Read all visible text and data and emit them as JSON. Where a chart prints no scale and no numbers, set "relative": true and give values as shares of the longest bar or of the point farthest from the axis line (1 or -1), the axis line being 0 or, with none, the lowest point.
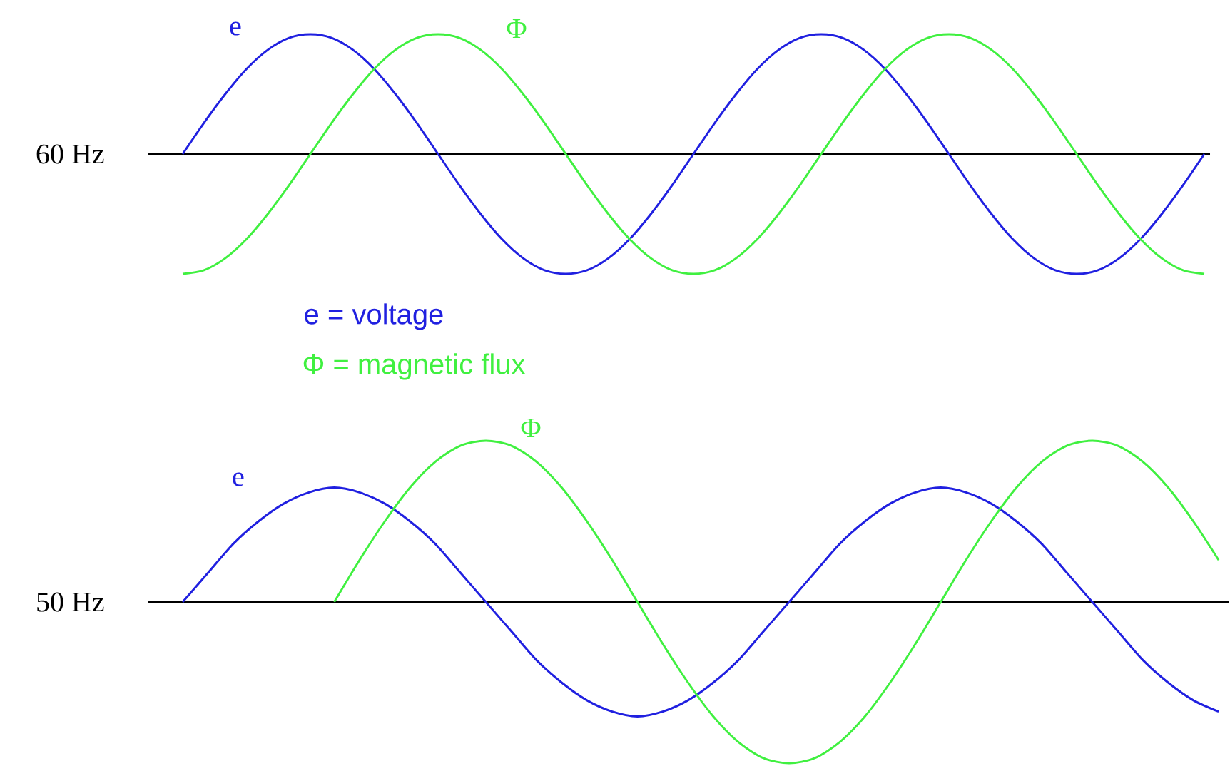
{
  "chart_data": [
    {
      "type": "line",
      "relative": true,
      "ylabel": "60 Hz",
      "categories": [
        null,
        null,
        null,
        null,
        null,
        null,
        null,
        null,
        null,
        null,
        null,
        null,
        null,
        null,
        null,
        null,
        null,
        null,
        null,
        null,
        null,
        null,
        null,
        null,
        null,
        null,
        null,
        null,
        null,
        null,
        null,
        null,
        null,
        null,
        null,
        null,
        null,
        null,
        null,
        null,
        null,
        null,
        null,
        null,
        null,
        null,
        null,
        null,
        null
      ],
      "series": [
        {
          "name": "e",
          "color": "#2020e0",
          "values": [
            0,
            0.26,
            0.5,
            0.71,
            0.87,
            0.97,
            1,
            0.97,
            0.87,
            0.71,
            0.5,
            0.26,
            0,
            -0.26,
            -0.5,
            -0.71,
            -0.87,
            -0.97,
            -1,
            -0.97,
            -0.87,
            -0.71,
            -0.5,
            -0.26,
            0,
            0.26,
            0.5,
            0.71,
            0.87,
            0.97,
            1,
            0.97,
            0.87,
            0.71,
            0.5,
            0.26,
            0,
            -0.26,
            -0.5,
            -0.71,
            -0.87,
            -0.97,
            -1,
            -0.97,
            -0.87,
            -0.71,
            -0.5,
            -0.26,
            0
          ]
        },
        {
          "name": "Φ",
          "color": "#40f040",
          "values": [
            -1,
            -0.97,
            -0.87,
            -0.71,
            -0.5,
            -0.26,
            0,
            0.26,
            0.5,
            0.71,
            0.87,
            0.97,
            1,
            0.97,
            0.87,
            0.71,
            0.5,
            0.26,
            0,
            -0.26,
            -0.5,
            -0.71,
            -0.87,
            -0.97,
            -1,
            -0.97,
            -0.87,
            -0.71,
            -0.5,
            -0.26,
            0,
            0.26,
            0.5,
            0.71,
            0.87,
            0.97,
            1,
            0.97,
            0.87,
            0.71,
            0.5,
            0.26,
            0,
            -0.26,
            -0.5,
            -0.71,
            -0.87,
            -0.97,
            -1
          ]
        }
      ],
      "annotations": [
        "e = voltage",
        "Φ = magnetic flux"
      ]
    },
    {
      "type": "line",
      "relative": true,
      "ylabel": "50 Hz",
      "categories": [
        null,
        null,
        null,
        null,
        null,
        null,
        null,
        null,
        null,
        null,
        null,
        null,
        null,
        null,
        null,
        null,
        null,
        null,
        null,
        null,
        null,
        null,
        null,
        null,
        null,
        null,
        null,
        null,
        null,
        null,
        null,
        null,
        null,
        null,
        null,
        null,
        null,
        null,
        null,
        null,
        null,
        null
      ],
      "series": [
        {
          "name": "e",
          "color": "#2020e0",
          "values": [
            0,
            0.18,
            0.36,
            0.5,
            0.61,
            0.68,
            0.71,
            0.68,
            0.61,
            0.5,
            0.36,
            0.18,
            0,
            -0.18,
            -0.36,
            -0.5,
            -0.61,
            -0.68,
            -0.71,
            -0.68,
            -0.61,
            -0.5,
            -0.36,
            -0.18,
            0,
            0.18,
            0.36,
            0.5,
            0.61,
            0.68,
            0.71,
            0.68,
            0.61,
            0.5,
            0.36,
            0.18,
            0,
            -0.18,
            -0.36,
            -0.5,
            -0.61,
            -0.68
          ]
        },
        {
          "name": "Φ",
          "color": "#40f040",
          "values": [
            null,
            null,
            null,
            null,
            null,
            null,
            0,
            0.26,
            0.5,
            0.71,
            0.87,
            0.97,
            1,
            0.97,
            0.87,
            0.71,
            0.5,
            0.26,
            0,
            -0.26,
            -0.5,
            -0.71,
            -0.87,
            -0.97,
            -1,
            -0.97,
            -0.87,
            -0.71,
            -0.5,
            -0.26,
            0,
            0.26,
            0.5,
            0.71,
            0.87,
            0.97,
            1,
            0.97,
            0.87,
            0.71,
            0.5,
            0.26
          ]
        }
      ]
    }
  ]
}
